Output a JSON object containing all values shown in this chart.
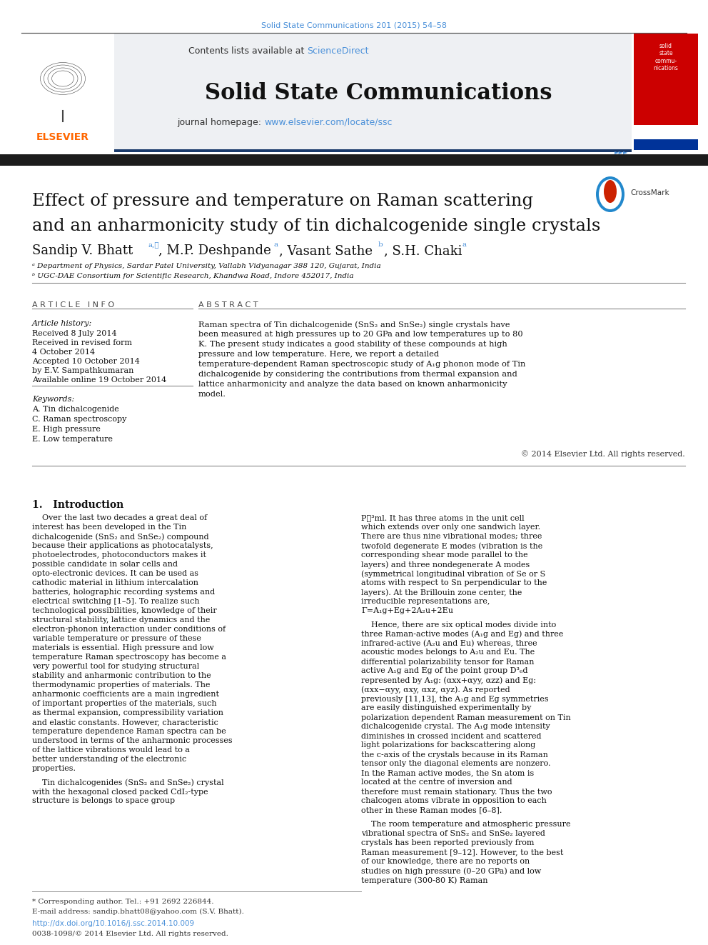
{
  "journal_ref": "Solid State Communications 201 (2015) 54–58",
  "journal_ref_color": "#4a90d9",
  "journal_name": "Solid State Communications",
  "sciencedirect_color": "#4a90d9",
  "homepage_url": "www.elsevier.com/locate/ssc",
  "homepage_url_color": "#4a90d9",
  "article_title_line1": "Effect of pressure and temperature on Raman scattering",
  "article_title_line2": "and an anharmonicity study of tin dichalcogenide single crystals",
  "affil_a": "ᵃ Department of Physics, Sardar Patel University, Vallabh Vidyanagar 388 120, Gujarat, India",
  "affil_b": "ᵇ UGC-DAE Consortium for Scientific Research, Khandwa Road, Indore 452017, India",
  "article_info_label": "ARTICLE INFO",
  "abstract_label": "ABSTRACT",
  "article_history_label": "Article history:",
  "received_text": "Received 8 July 2014",
  "revised_text": "Received in revised form",
  "revised_date": "4 October 2014",
  "accepted_text": "Accepted 10 October 2014",
  "accepted_by": "by E.V. Sampathkumaran",
  "available_text": "Available online 19 October 2014",
  "keywords_label": "Keywords:",
  "keywords": [
    "A. Tin dichalcogenide",
    "C. Raman spectroscopy",
    "E. High pressure",
    "E. Low temperature"
  ],
  "abstract_text": "Raman spectra of Tin dichalcogenide (SnS₂ and SnSe₂) single crystals have been measured at high pressures up to 20 GPa and low temperatures up to 80 K. The present study indicates a good stability of these compounds at high pressure and low temperature. Here, we report a detailed temperature-dependent Raman spectroscopic study of A₁g phonon mode of Tin dichalcogenide by considering the contributions from thermal expansion and lattice anharmonicity and analyze the data based on known anharmonicity model.",
  "copyright_text": "© 2014 Elsevier Ltd. All rights reserved.",
  "section1_title": "1.   Introduction",
  "intro_left_para1": "Over the last two decades a great deal of interest has been developed in the Tin dichalcogenide (SnS₂ and SnSe₂) compound because their applications as photocatalysts, photoelectrodes, photoconductors makes it possible candidate in solar cells and opto-electronic devices. It can be used as cathodic material in lithium intercalation batteries, holographic recording systems and electrical switching [1–5]. To realize such technological possibilities, knowledge of their structural stability, lattice dynamics and the electron-phonon interaction under conditions of variable temperature or pressure of these materials is essential. High pressure and low temperature Raman spectroscopy has become a very powerful tool for studying structural stability and anharmonic contribution to the thermodynamic properties of materials. The anharmonic coefficients are a main ingredient of important properties of the materials, such as thermal expansion, compressibility variation and elastic constants. However, characteristic temperature dependence Raman spectra can be understood in terms of the anharmonic processes of the lattice vibrations would lead to a better understanding of the electronic properties.",
  "intro_left_para2": "Tin dichalcogenides (SnS₂ and SnSe₂) crystal with the hexagonal closed packed CdI₂-type structure is belongs to space group",
  "intro_right_para1": "P͟³ml. It has three atoms in the unit cell which extends over only one sandwich layer. There are thus nine vibrational modes; three twofold degenerate E modes (vibration is the corresponding shear mode parallel to the layers) and three nondegenerate A modes (symmetrical longitudinal vibration of Se or S atoms with respect to Sn perpendicular to the layers). At the Brillouin zone center, the irreducible representations are, Γ=A₁g+Eg+2A₂u+2Eu",
  "intro_right_para2": "Hence, there are six optical modes divide into three Raman-active modes (A₁g and Eg) and three infrared-active (A₂u and Eu) whereas, three acoustic modes belongs to A₂u and Eu. The differential polarizability tensor for Raman active A₁g and Eg of the point group D³₆d represented by A₁g: (αxx+αyy, αzz) and Eg: (αxx−αyy, αxy, αxz, αyz). As reported previously [11,13], the A₁g and Eg symmetries are easily distinguished experimentally by polarization dependent Raman measurement on Tin dichalcogenide crystal. The A₁g mode intensity diminishes in crossed incident and scattered light polarizations for backscattering along the c-axis of the crystals because in its Raman tensor only the diagonal elements are nonzero. In the Raman active modes, the Sn atom is located at the centre of inversion and therefore must remain stationary. Thus the two chalcogen atoms vibrate in opposition to each other in these Raman modes [6–8].",
  "intro_right_para3": "The room temperature and atmospheric pressure vibrational spectra of SnS₂ and SnSe₂ layered crystals has been reported previously from Raman measurement [9–12]. However, to the best of our knowledge, there are no reports on studies on high pressure (0–20 GPa) and low temperature (300-80 K) Raman",
  "footnote_star": "* Corresponding author. Tel.: +91 2692 226844.",
  "footnote_email": "E-mail address: sandip.bhatt08@yahoo.com (S.V. Bhatt).",
  "doi_text": "http://dx.doi.org/10.1016/j.ssc.2014.10.009",
  "issn_text": "0038-1098/© 2014 Elsevier Ltd. All rights reserved.",
  "bg_color": "#ffffff",
  "link_color": "#4a90d9",
  "text_dark": "#111111",
  "text_mid": "#333333",
  "line_color": "#aaaaaa",
  "header_bg": "#eef0f3",
  "dark_bar": "#1c1c1c",
  "nav_bar": "#1a3a6b",
  "cover_red": "#cc0000"
}
